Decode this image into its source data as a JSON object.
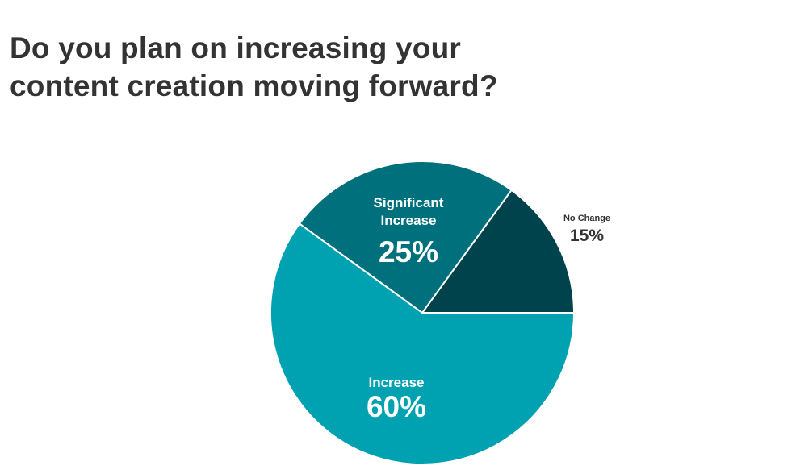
{
  "title_lines": [
    "Do you plan on increasing your",
    "content creation moving forward?"
  ],
  "chart_data": {
    "type": "pie",
    "title": "Do you plan on increasing your content creation moving forward?",
    "slices": [
      {
        "label_lines": [
          "No Change"
        ],
        "value": 15,
        "value_label": "15%",
        "color": "#00434c",
        "label_color": "#333333"
      },
      {
        "label_lines": [
          "Significant",
          "Increase"
        ],
        "value": 25,
        "value_label": "25%",
        "color": "#00717c",
        "label_color": "#ffffff"
      },
      {
        "label_lines": [
          "Increase"
        ],
        "value": 60,
        "value_label": "60%",
        "color": "#00a1b0",
        "label_color": "#ffffff"
      }
    ]
  }
}
